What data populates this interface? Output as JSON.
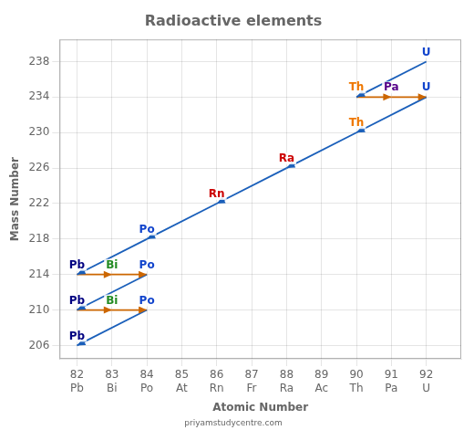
{
  "chart_data": {
    "type": "arrows",
    "title": "Radioactive elements",
    "subtitle": "priyamstudycentre.com",
    "xlabel": "Atomic Number",
    "ylabel": "Mass Number",
    "xlim": [
      81.5,
      93.0
    ],
    "ylim": [
      204.5,
      240.5
    ],
    "xticks": [
      {
        "value": 82,
        "label": "82\nPb"
      },
      {
        "value": 83,
        "label": "83\nBi"
      },
      {
        "value": 84,
        "label": "84\nPo"
      },
      {
        "value": 85,
        "label": "85\nAt"
      },
      {
        "value": 86,
        "label": "86\nRn"
      },
      {
        "value": 87,
        "label": "87\nFr"
      },
      {
        "value": 88,
        "label": "88\nRa"
      },
      {
        "value": 89,
        "label": "89\nAc"
      },
      {
        "value": 90,
        "label": "90\nTh"
      },
      {
        "value": 91,
        "label": "91\nPa"
      },
      {
        "value": 92,
        "label": "92\nU"
      }
    ],
    "yticks": [
      206,
      210,
      214,
      218,
      222,
      226,
      230,
      234,
      238
    ],
    "grid": true,
    "series": [
      {
        "color": "#1a5fba",
        "arrows": [
          [
            92,
            238,
            90,
            234
          ],
          [
            92,
            234,
            90,
            230
          ],
          [
            90,
            230,
            88,
            226
          ],
          [
            88,
            226,
            86,
            222
          ],
          [
            86,
            222,
            84,
            218
          ],
          [
            84,
            218,
            82,
            214
          ],
          [
            84,
            214,
            82,
            210
          ],
          [
            84,
            210,
            82,
            206
          ]
        ]
      },
      {
        "color": "#cc6600",
        "arrows": [
          [
            90,
            234,
            91,
            234
          ],
          [
            91,
            234,
            92,
            234
          ],
          [
            82,
            214,
            83,
            214
          ],
          [
            83,
            214,
            84,
            214
          ],
          [
            82,
            210,
            83,
            210
          ],
          [
            83,
            210,
            84,
            210
          ]
        ]
      }
    ],
    "annotations": [
      {
        "text": "Pb",
        "x": 82,
        "y": 206,
        "color": "#000080"
      },
      {
        "text": "Pb",
        "x": 82,
        "y": 210,
        "color": "#000080"
      },
      {
        "text": "Bi",
        "x": 83,
        "y": 210,
        "color": "#228B22"
      },
      {
        "text": "Po",
        "x": 84,
        "y": 210,
        "color": "#1144cc"
      },
      {
        "text": "Pb",
        "x": 82,
        "y": 214,
        "color": "#000080"
      },
      {
        "text": "Bi",
        "x": 83,
        "y": 214,
        "color": "#228B22"
      },
      {
        "text": "Po",
        "x": 84,
        "y": 214,
        "color": "#1144cc"
      },
      {
        "text": "Po",
        "x": 84,
        "y": 218,
        "color": "#1144cc"
      },
      {
        "text": "Rn",
        "x": 86,
        "y": 222,
        "color": "#cc0000"
      },
      {
        "text": "Ra",
        "x": 88,
        "y": 226,
        "color": "#cc0000"
      },
      {
        "text": "Th",
        "x": 90,
        "y": 230,
        "color": "#ee7700"
      },
      {
        "text": "Th",
        "x": 90,
        "y": 234,
        "color": "#ee7700"
      },
      {
        "text": "Pa",
        "x": 91,
        "y": 234,
        "color": "#550088"
      },
      {
        "text": "U",
        "x": 92,
        "y": 234,
        "color": "#1144cc"
      },
      {
        "text": "U",
        "x": 92,
        "y": 238,
        "color": "#1144cc"
      }
    ]
  }
}
